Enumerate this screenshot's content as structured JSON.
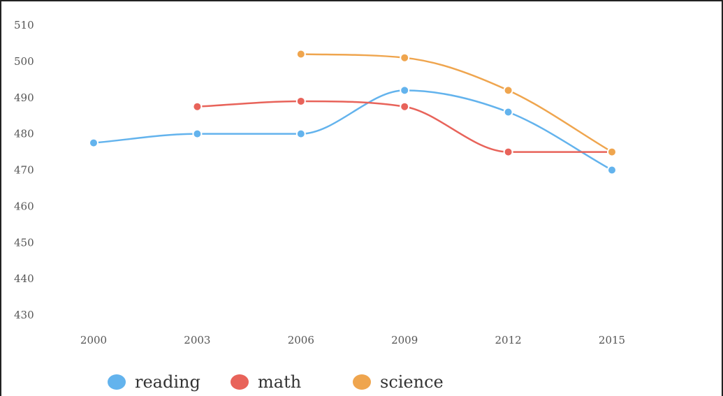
{
  "chart_data": {
    "type": "line",
    "categories": [
      "2000",
      "2003",
      "2006",
      "2009",
      "2012",
      "2015"
    ],
    "x": [
      2000,
      2003,
      2006,
      2009,
      2012,
      2015
    ],
    "yticks": [
      "510",
      "500",
      "490",
      "480",
      "470",
      "460",
      "450",
      "440",
      "430"
    ],
    "ylim": [
      430,
      510
    ],
    "series": [
      {
        "name": "reading",
        "color": "#63b3ed",
        "values": [
          477.5,
          480,
          480,
          492,
          486,
          470
        ]
      },
      {
        "name": "math",
        "color": "#e8635a",
        "values": [
          null,
          487.5,
          489,
          487.5,
          475,
          475
        ]
      },
      {
        "name": "science",
        "color": "#efa54e",
        "values": [
          null,
          null,
          502,
          501,
          492,
          475
        ]
      }
    ],
    "legend_position": "bottom-left",
    "title": "",
    "xlabel": "",
    "ylabel": "",
    "grid": false
  }
}
